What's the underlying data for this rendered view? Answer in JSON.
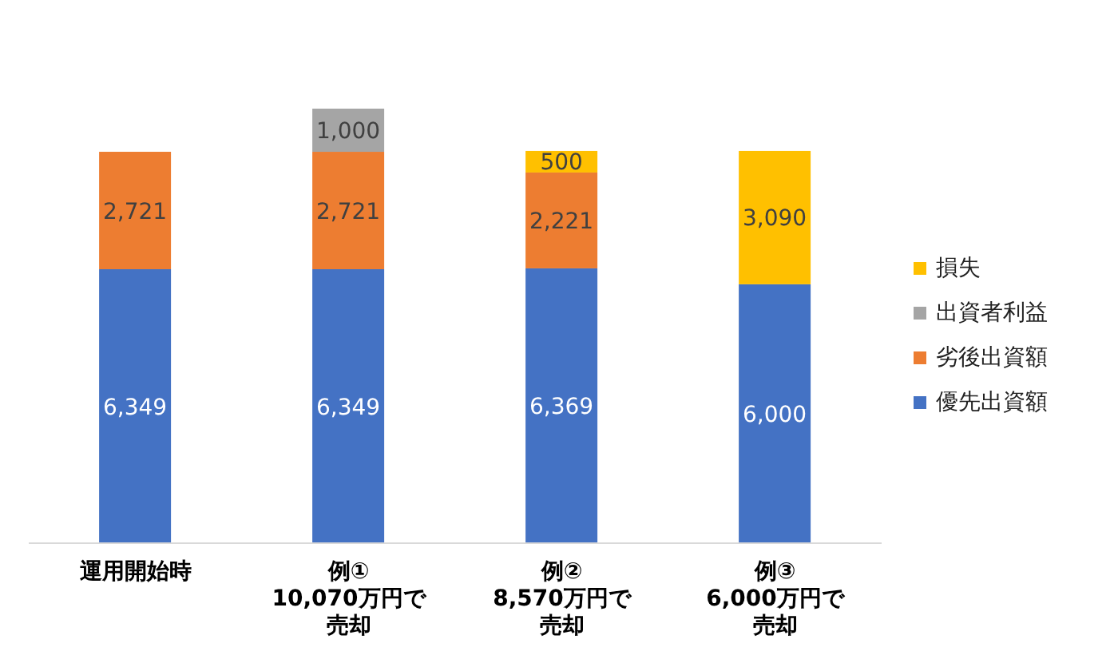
{
  "chart_data": {
    "type": "bar",
    "stacked": true,
    "categories": [
      "運用開始時",
      "例①10,070万円で売却",
      "例②8,570万円で売却",
      "例③6,000万円で売却"
    ],
    "series": [
      {
        "name": "優先出資額",
        "color": "#4472c4",
        "values": [
          6349,
          6349,
          6369,
          6000
        ],
        "value_labels": [
          "6,349",
          "6,349",
          "6,369",
          "6,000"
        ]
      },
      {
        "name": "劣後出資額",
        "color": "#ed7d31",
        "values": [
          2721,
          2721,
          2221,
          null
        ],
        "value_labels": [
          "2,721",
          "2,721",
          "2,221",
          null
        ]
      },
      {
        "name": "出資者利益",
        "color": "#a5a5a5",
        "values": [
          null,
          1000,
          null,
          null
        ],
        "value_labels": [
          null,
          "1,000",
          null,
          null
        ]
      },
      {
        "name": "損失",
        "color": "#ffc000",
        "values": [
          null,
          null,
          500,
          3090
        ],
        "value_labels": [
          null,
          null,
          "500",
          "3,090"
        ]
      }
    ],
    "legend": "right",
    "grid": false
  }
}
